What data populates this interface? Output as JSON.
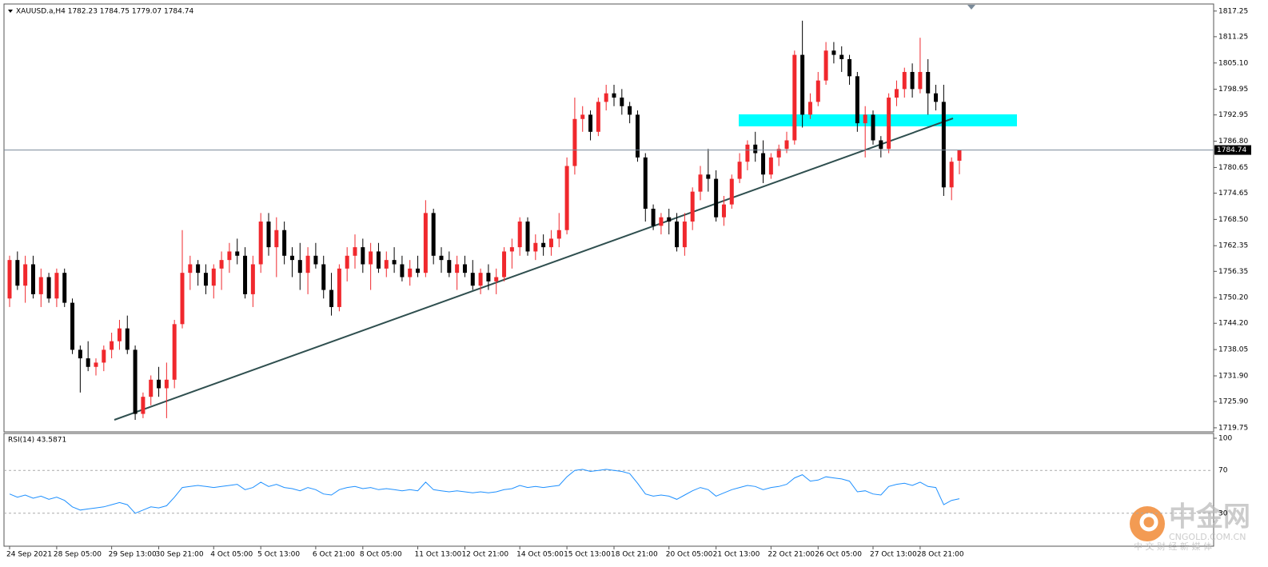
{
  "chart_data": {
    "type": "candlestick",
    "header": "XAUUSD.a,H4  1782.23 1784.75 1779.07 1784.74",
    "up_color": "#f0282d",
    "down_color": "#000000",
    "categories": [
      "24 Sep 2021",
      null,
      null,
      null,
      null,
      null,
      "28 Sep 05:00",
      null,
      null,
      null,
      null,
      null,
      null,
      "29 Sep 13:00",
      null,
      null,
      null,
      null,
      null,
      "30 Sep 21:00",
      null,
      null,
      null,
      null,
      null,
      null,
      "4 Oct 05:00",
      null,
      null,
      null,
      null,
      null,
      "5 Oct 13:00",
      null,
      null,
      null,
      null,
      null,
      null,
      "6 Oct 21:00",
      null,
      null,
      null,
      null,
      null,
      "8 Oct 05:00",
      null,
      null,
      null,
      null,
      null,
      null,
      "11 Oct 13:00",
      null,
      null,
      null,
      null,
      null,
      "12 Oct 21:00",
      null,
      null,
      null,
      null,
      null,
      null,
      "14 Oct 05:00",
      null,
      null,
      null,
      null,
      null,
      "15 Oct 13:00",
      null,
      null,
      null,
      null,
      null,
      "18 Oct 21:00",
      null,
      null,
      null,
      null,
      null,
      null,
      "20 Oct 05:00",
      null,
      null,
      null,
      null,
      null,
      "21 Oct 13:00",
      null,
      null,
      null,
      null,
      null,
      null,
      "22 Oct 21:00",
      null,
      null,
      null,
      null,
      null,
      "26 Oct 05:00",
      null,
      null,
      null,
      null,
      null,
      null,
      "27 Oct 13:00",
      null,
      null,
      null,
      null,
      null,
      "28 Oct 21:00",
      null,
      null,
      null,
      null,
      null
    ],
    "values": [
      [
        1750,
        1760,
        1748,
        1759
      ],
      [
        1759,
        1761,
        1752,
        1753
      ],
      [
        1753,
        1760,
        1749,
        1758
      ],
      [
        1758,
        1760,
        1750,
        1751
      ],
      [
        1751,
        1757,
        1748,
        1755
      ],
      [
        1755,
        1756,
        1749,
        1750
      ],
      [
        1750,
        1757,
        1748,
        1756
      ],
      [
        1756,
        1757,
        1748,
        1749
      ],
      [
        1749,
        1750,
        1737,
        1738
      ],
      [
        1738,
        1739,
        1728,
        1736
      ],
      [
        1736,
        1740,
        1733,
        1734
      ],
      [
        1734,
        1736,
        1732,
        1735
      ],
      [
        1735,
        1739,
        1733,
        1738
      ],
      [
        1738,
        1742,
        1736,
        1740
      ],
      [
        1740,
        1745,
        1738,
        1743
      ],
      [
        1743,
        1746,
        1737,
        1738
      ],
      [
        1738,
        1739,
        1721.6,
        1723
      ],
      [
        1723,
        1728,
        1722,
        1727
      ],
      [
        1727,
        1732,
        1725,
        1731
      ],
      [
        1731,
        1734,
        1727,
        1729
      ],
      [
        1729,
        1735,
        1722,
        1731
      ],
      [
        1731,
        1745,
        1729,
        1744
      ],
      [
        1744,
        1766,
        1743,
        1756
      ],
      [
        1756,
        1760,
        1752,
        1758
      ],
      [
        1758,
        1759,
        1753,
        1756
      ],
      [
        1756,
        1758,
        1751,
        1753
      ],
      [
        1753,
        1758,
        1750,
        1757
      ],
      [
        1757,
        1761,
        1752,
        1759
      ],
      [
        1759,
        1763,
        1756,
        1761
      ],
      [
        1761,
        1764,
        1758,
        1760
      ],
      [
        1760,
        1762,
        1750,
        1751
      ],
      [
        1751,
        1760,
        1748,
        1758
      ],
      [
        1758,
        1770,
        1756,
        1768
      ],
      [
        1768,
        1770,
        1760,
        1762
      ],
      [
        1762,
        1769,
        1755,
        1766
      ],
      [
        1766,
        1768,
        1758,
        1760
      ],
      [
        1760,
        1762,
        1755,
        1759
      ],
      [
        1759,
        1763,
        1752,
        1756
      ],
      [
        1756,
        1762,
        1751,
        1760
      ],
      [
        1760,
        1763,
        1757,
        1758
      ],
      [
        1758,
        1760,
        1750,
        1752
      ],
      [
        1752,
        1756,
        1746,
        1748
      ],
      [
        1748,
        1758,
        1747,
        1757
      ],
      [
        1757,
        1762,
        1754,
        1760
      ],
      [
        1760,
        1765,
        1757,
        1762
      ],
      [
        1762,
        1764,
        1756,
        1758
      ],
      [
        1758,
        1763,
        1752,
        1761
      ],
      [
        1761,
        1763,
        1756,
        1757
      ],
      [
        1757,
        1761,
        1755,
        1759
      ],
      [
        1759,
        1762,
        1756,
        1758
      ],
      [
        1758,
        1760,
        1754,
        1755
      ],
      [
        1755,
        1759,
        1753,
        1757
      ],
      [
        1757,
        1760,
        1755,
        1756
      ],
      [
        1756,
        1773,
        1755,
        1770
      ],
      [
        1770,
        1771,
        1758,
        1760
      ],
      [
        1760,
        1762,
        1756,
        1759
      ],
      [
        1759,
        1761,
        1755,
        1756
      ],
      [
        1756,
        1760,
        1752,
        1758
      ],
      [
        1758,
        1760,
        1755,
        1756
      ],
      [
        1756,
        1759,
        1752,
        1753
      ],
      [
        1753,
        1757,
        1751,
        1756
      ],
      [
        1756,
        1758,
        1752,
        1754
      ],
      [
        1754,
        1757,
        1751,
        1755
      ],
      [
        1755,
        1762,
        1754,
        1761
      ],
      [
        1761,
        1764,
        1757,
        1762
      ],
      [
        1762,
        1769,
        1760,
        1768
      ],
      [
        1768,
        1769,
        1760,
        1761
      ],
      [
        1761,
        1765,
        1759,
        1763
      ],
      [
        1763,
        1765,
        1760,
        1762
      ],
      [
        1762,
        1766,
        1760,
        1764
      ],
      [
        1764,
        1770,
        1762,
        1766
      ],
      [
        1766,
        1783,
        1765,
        1781
      ],
      [
        1781,
        1797,
        1779,
        1792
      ],
      [
        1792,
        1795,
        1789,
        1793
      ],
      [
        1793,
        1794,
        1787,
        1789
      ],
      [
        1789,
        1797,
        1788,
        1796
      ],
      [
        1796,
        1800,
        1794,
        1798
      ],
      [
        1798,
        1800,
        1795,
        1797
      ],
      [
        1797,
        1799,
        1793,
        1795
      ],
      [
        1795,
        1796,
        1791,
        1793
      ],
      [
        1793,
        1794,
        1782,
        1783
      ],
      [
        1783,
        1784,
        1768,
        1771
      ],
      [
        1771,
        1772,
        1766,
        1767
      ],
      [
        1767,
        1770,
        1765,
        1769
      ],
      [
        1769,
        1771,
        1765,
        1768
      ],
      [
        1768,
        1770,
        1761,
        1762
      ],
      [
        1762,
        1770,
        1760,
        1768
      ],
      [
        1768,
        1776,
        1766,
        1775
      ],
      [
        1775,
        1781,
        1773,
        1779
      ],
      [
        1779,
        1785,
        1775,
        1778
      ],
      [
        1778,
        1780,
        1768,
        1769
      ],
      [
        1769,
        1774,
        1767,
        1772
      ],
      [
        1772,
        1779,
        1771,
        1778
      ],
      [
        1778,
        1784,
        1777,
        1782
      ],
      [
        1782,
        1787,
        1780,
        1786
      ],
      [
        1786,
        1789,
        1782,
        1784
      ],
      [
        1784,
        1787,
        1777,
        1779
      ],
      [
        1779,
        1784,
        1778,
        1783
      ],
      [
        1783,
        1786,
        1781,
        1785
      ],
      [
        1785,
        1789,
        1784,
        1787
      ],
      [
        1787,
        1808,
        1786,
        1807
      ],
      [
        1807,
        1815,
        1790,
        1793
      ],
      [
        1793,
        1798,
        1792,
        1796
      ],
      [
        1796,
        1803,
        1795,
        1801
      ],
      [
        1801,
        1810,
        1800,
        1808
      ],
      [
        1808,
        1810,
        1805,
        1807
      ],
      [
        1807,
        1809,
        1803,
        1806
      ],
      [
        1806,
        1807,
        1800,
        1802
      ],
      [
        1802,
        1803,
        1789,
        1791
      ],
      [
        1791,
        1795,
        1783,
        1793
      ],
      [
        1793,
        1794,
        1786,
        1787
      ],
      [
        1787,
        1788,
        1783,
        1785
      ],
      [
        1785,
        1798,
        1784,
        1797
      ],
      [
        1797,
        1801,
        1795,
        1799
      ],
      [
        1799,
        1804,
        1797,
        1803
      ],
      [
        1803,
        1805,
        1797,
        1799
      ],
      [
        1799,
        1811,
        1798,
        1803
      ],
      [
        1803,
        1806,
        1793,
        1798
      ],
      [
        1798,
        1800,
        1794,
        1796
      ],
      [
        1796,
        1800,
        1774,
        1776
      ],
      [
        1776,
        1783,
        1773,
        1782
      ],
      [
        1782.23,
        1784.75,
        1779.07,
        1784.74
      ]
    ],
    "ylim": [
      1718.8,
      1818.9
    ],
    "yticks": [
      1719.75,
      {
        "value": 1725.9,
        "label": "1725.90"
      },
      {
        "value": 1731.9,
        "label": "1731.90"
      },
      1738.05,
      {
        "value": 1744.2,
        "label": "1744.20"
      },
      {
        "value": 1750.2,
        "label": "1750.20"
      },
      1756.35,
      1762.35,
      {
        "value": 1768.5,
        "label": "1768.50"
      },
      1774.65,
      1780.65,
      {
        "value": 1786.8,
        "label": "1786.80"
      },
      1792.95,
      1798.95,
      {
        "value": 1805.1,
        "label": "1805.10"
      },
      1811.25,
      1817.25
    ],
    "current_price": 1784.74,
    "rsi": {
      "label": "RSI(14) 43.5871",
      "color": "#1e90ff",
      "ylim": [
        0,
        100
      ],
      "yticks": [
        100,
        70,
        30
      ],
      "values": [
        48,
        45,
        47,
        44,
        46,
        43,
        45,
        42,
        36,
        33,
        34,
        35,
        36,
        38,
        40,
        38,
        30,
        33,
        36,
        35,
        37,
        45,
        54,
        55,
        56,
        55,
        54,
        55,
        56,
        57,
        52,
        54,
        59,
        55,
        57,
        54,
        53,
        51,
        54,
        52,
        48,
        47,
        52,
        54,
        55,
        53,
        54,
        52,
        53,
        52,
        51,
        52,
        51,
        59,
        52,
        51,
        50,
        51,
        50,
        49,
        50,
        49,
        50,
        52,
        53,
        56,
        54,
        55,
        54,
        55,
        56,
        64,
        70,
        71,
        69,
        70,
        71,
        70,
        69,
        67,
        58,
        48,
        46,
        47,
        46,
        43,
        47,
        51,
        54,
        52,
        46,
        49,
        52,
        54,
        56,
        55,
        52,
        54,
        55,
        57,
        63,
        66,
        60,
        61,
        64,
        63,
        62,
        60,
        50,
        51,
        48,
        47,
        55,
        57,
        58,
        56,
        59,
        55,
        54,
        38,
        42,
        43.5871
      ]
    },
    "watermark": {
      "brand": "中金网",
      "site": "CNGOLD.COM.CN",
      "slogan": "中 文 财 经 新 媒 体"
    }
  }
}
